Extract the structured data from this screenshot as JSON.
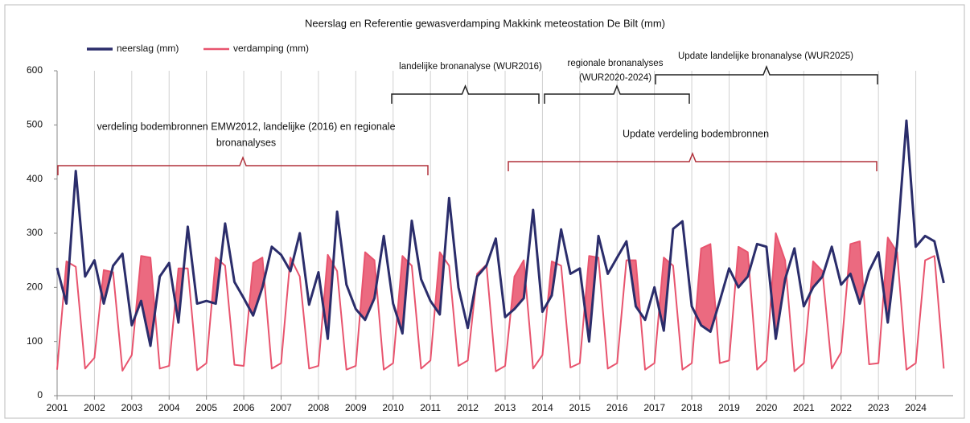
{
  "chart_data": {
    "type": "line",
    "title": "Neerslag en Referentie gewasverdamping Makkink meteostation De Bilt (mm)",
    "x": [
      2001,
      2001.25,
      2001.5,
      2001.75,
      2002,
      2002.25,
      2002.5,
      2002.75,
      2003,
      2003.25,
      2003.5,
      2003.75,
      2004,
      2004.25,
      2004.5,
      2004.75,
      2005,
      2005.25,
      2005.5,
      2005.75,
      2006,
      2006.25,
      2006.5,
      2006.75,
      2007,
      2007.25,
      2007.5,
      2007.75,
      2008,
      2008.25,
      2008.5,
      2008.75,
      2009,
      2009.25,
      2009.5,
      2009.75,
      2010,
      2010.25,
      2010.5,
      2010.75,
      2011,
      2011.25,
      2011.5,
      2011.75,
      2012,
      2012.25,
      2012.5,
      2012.75,
      2013,
      2013.25,
      2013.5,
      2013.75,
      2014,
      2014.25,
      2014.5,
      2014.75,
      2015,
      2015.25,
      2015.5,
      2015.75,
      2016,
      2016.25,
      2016.5,
      2016.75,
      2017,
      2017.25,
      2017.5,
      2017.75,
      2018,
      2018.25,
      2018.5,
      2018.75,
      2019,
      2019.25,
      2019.5,
      2019.75,
      2020,
      2020.25,
      2020.5,
      2020.75,
      2021,
      2021.25,
      2021.5,
      2021.75,
      2022,
      2022.25,
      2022.5,
      2022.75,
      2023,
      2023.25,
      2023.5,
      2023.75,
      2024,
      2024.25,
      2024.5,
      2024.75
    ],
    "series": [
      {
        "name": "neerslag (mm)",
        "color": "#2b2d6b",
        "values": [
          236,
          170,
          415,
          220,
          250,
          170,
          240,
          262,
          130,
          175,
          92,
          220,
          245,
          135,
          312,
          170,
          175,
          170,
          318,
          210,
          180,
          148,
          200,
          275,
          260,
          230,
          300,
          168,
          228,
          105,
          340,
          205,
          160,
          140,
          180,
          295,
          170,
          115,
          323,
          215,
          175,
          150,
          365,
          200,
          125,
          220,
          240,
          290,
          145,
          160,
          180,
          343,
          155,
          185,
          307,
          225,
          235,
          100,
          295,
          225,
          255,
          285,
          165,
          140,
          200,
          120,
          308,
          322,
          165,
          130,
          118,
          175,
          235,
          200,
          220,
          280,
          275,
          105,
          215,
          272,
          165,
          200,
          220,
          275,
          205,
          225,
          170,
          230,
          265,
          135,
          280,
          508,
          275,
          295,
          285,
          208
        ]
      },
      {
        "name": "verdamping (mm)",
        "color": "#e8546e",
        "values": [
          48,
          248,
          238,
          50,
          70,
          232,
          228,
          46,
          75,
          258,
          255,
          50,
          55,
          235,
          235,
          47,
          60,
          255,
          240,
          57,
          55,
          245,
          255,
          50,
          60,
          255,
          220,
          50,
          55,
          260,
          230,
          48,
          55,
          265,
          250,
          48,
          60,
          258,
          240,
          50,
          65,
          265,
          240,
          55,
          65,
          225,
          242,
          45,
          55,
          220,
          250,
          50,
          75,
          248,
          240,
          52,
          60,
          258,
          255,
          50,
          60,
          250,
          250,
          48,
          60,
          255,
          240,
          48,
          60,
          272,
          280,
          60,
          65,
          275,
          265,
          48,
          65,
          300,
          250,
          45,
          60,
          248,
          230,
          50,
          80,
          280,
          285,
          58,
          60,
          292,
          265,
          48,
          60,
          250,
          258,
          50
        ]
      }
    ],
    "deficit_color": "#e8506a",
    "xlim": [
      2001,
      2025
    ],
    "xticks": [
      2001,
      2002,
      2003,
      2004,
      2005,
      2006,
      2007,
      2008,
      2009,
      2010,
      2011,
      2012,
      2013,
      2014,
      2015,
      2016,
      2017,
      2018,
      2019,
      2020,
      2021,
      2022,
      2023,
      2024
    ],
    "ylim": [
      0,
      600
    ],
    "yticks": [
      0,
      100,
      200,
      300,
      400,
      500,
      600
    ],
    "grid": "x",
    "legend": "top-left",
    "annotations": [
      {
        "lines": [
          "landelijke bronanalyse (WUR2016)"
        ],
        "bracket_color": "#222222"
      },
      {
        "lines": [
          "regionale bronanalyses",
          "(WUR2020-2024)"
        ],
        "bracket_color": "#222222"
      },
      {
        "lines": [
          "Update landelijke bronanalyse (WUR2025)"
        ],
        "bracket_color": "#222222"
      },
      {
        "lines": [
          "verdeling bodembronnen EMW2012, landelijke (2016) en regionale",
          "bronanalyses"
        ],
        "bracket_color": "#b0303a"
      },
      {
        "lines": [
          "Update verdeling bodembronnen"
        ],
        "bracket_color": "#b0303a"
      }
    ]
  }
}
